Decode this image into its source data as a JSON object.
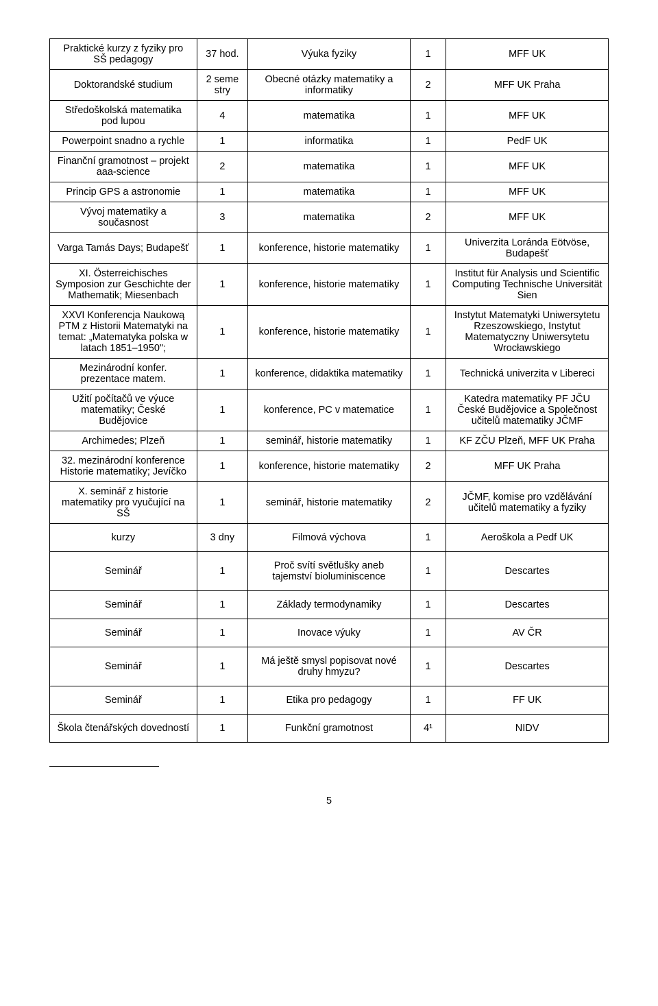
{
  "rows": [
    {
      "c1": "Praktické kurzy z fyziky pro SŠ pedagogy",
      "c2": "37 hod.",
      "c3": "Výuka fyziky",
      "c4": "1",
      "c5": "MFF UK"
    },
    {
      "c1": "Doktorandské studium",
      "c2": "2 seme stry",
      "c3": "Obecné otázky matematiky a informatiky",
      "c4": "2",
      "c5": "MFF UK Praha"
    },
    {
      "c1": "Středoškolská matematika pod lupou",
      "c2": "4",
      "c3": "matematika",
      "c4": "1",
      "c5": "MFF UK"
    },
    {
      "c1": "Powerpoint snadno a rychle",
      "c2": "1",
      "c3": "informatika",
      "c4": "1",
      "c5": "PedF UK"
    },
    {
      "c1": "Finanční gramotnost – projekt aaa-science",
      "c2": "2",
      "c3": "matematika",
      "c4": "1",
      "c5": "MFF UK"
    },
    {
      "c1": "Princip GPS a astronomie",
      "c2": "1",
      "c3": "matematika",
      "c4": "1",
      "c5": "MFF UK"
    },
    {
      "c1": "Vývoj matematiky a současnost",
      "c2": "3",
      "c3": "matematika",
      "c4": "2",
      "c5": "MFF UK"
    },
    {
      "c1": "Varga Tamás Days; Budapešť",
      "c2": "1",
      "c3": "konference, historie matematiky",
      "c4": "1",
      "c5": "Univerzita Loránda Eötvöse, Budapešť"
    },
    {
      "c1": "XI. Österreichisches Symposion zur Geschichte der Mathematik; Miesenbach",
      "c2": "1",
      "c3": "konference, historie matematiky",
      "c4": "1",
      "c5": "Institut für Analysis und Scientific Computing\nTechnische Universität Sien"
    },
    {
      "c1": "XXVI Konferencja Naukową PTM z Historii Matematyki na temat: „Matematyka polska w latach 1851–1950\";",
      "c2": "1",
      "c3": "konference, historie matematiky",
      "c4": "1",
      "c5": "Instytut Matematyki Uniwersytetu Rzeszowskiego,\nInstytut Matematyczny Uniwersytetu Wrocławskiego"
    },
    {
      "c1": "Mezinárodní konfer. prezentace matem.",
      "c2": "1",
      "c3": "konference, didaktika matematiky",
      "c4": "1",
      "c5": "Technická univerzita v Libereci"
    },
    {
      "c1": "Užití počítačů ve výuce matematiky; České Budějovice",
      "c2": "1",
      "c3": "konference, PC v matematice",
      "c4": "1",
      "c5": "Katedra matematiky PF JČU České Budějovice a Společnost učitelů matematiky JČMF"
    },
    {
      "c1": "Archimedes; Plzeň",
      "c2": "1",
      "c3": "seminář, historie matematiky",
      "c4": "1",
      "c5": "KF ZČU Plzeň, MFF UK Praha"
    },
    {
      "c1": "32. mezinárodní konference Historie matematiky; Jevíčko",
      "c2": "1",
      "c3": "konference, historie matematiky",
      "c4": "2",
      "c5": "MFF UK Praha"
    },
    {
      "c1": "X. seminář z historie matematiky pro vyučující na SŠ",
      "c2": "1",
      "c3": "seminář, historie matematiky",
      "c4": "2",
      "c5": "JČMF, komise pro vzdělávání učitelů matematiky a fyziky"
    },
    {
      "c1": "kurzy",
      "c2": "3 dny",
      "c3": "Filmová výchova",
      "c4": "1",
      "c5": "Aeroškola a Pedf UK",
      "spaced": true
    },
    {
      "c1": "Seminář",
      "c2": "1",
      "c3": "Proč svítí světlušky aneb tajemství  bioluminiscence",
      "c4": "1",
      "c5": "Descartes",
      "spaced": true
    },
    {
      "c1": "Seminář",
      "c2": "1",
      "c3": "Základy termodynamiky",
      "c4": "1",
      "c5": "Descartes",
      "spaced": true
    },
    {
      "c1": "Seminář",
      "c2": "1",
      "c3": "Inovace výuky",
      "c4": "1",
      "c5": "AV ČR",
      "spaced": true
    },
    {
      "c1": "Seminář",
      "c2": "1",
      "c3": "Má ještě smysl popisovat nové druhy hmyzu?",
      "c4": "1",
      "c5": "Descartes",
      "spaced": true
    },
    {
      "c1": "Seminář",
      "c2": "1",
      "c3": "Etika pro pedagogy",
      "c4": "1",
      "c5": "FF UK",
      "spaced": true
    },
    {
      "c1": "Škola čtenářských dovedností",
      "c2": "1",
      "c3": "Funkční gramotnost",
      "c4": "4¹",
      "c5": "NIDV",
      "spaced": true
    }
  ],
  "footnote_rule": true,
  "page_number": "5"
}
